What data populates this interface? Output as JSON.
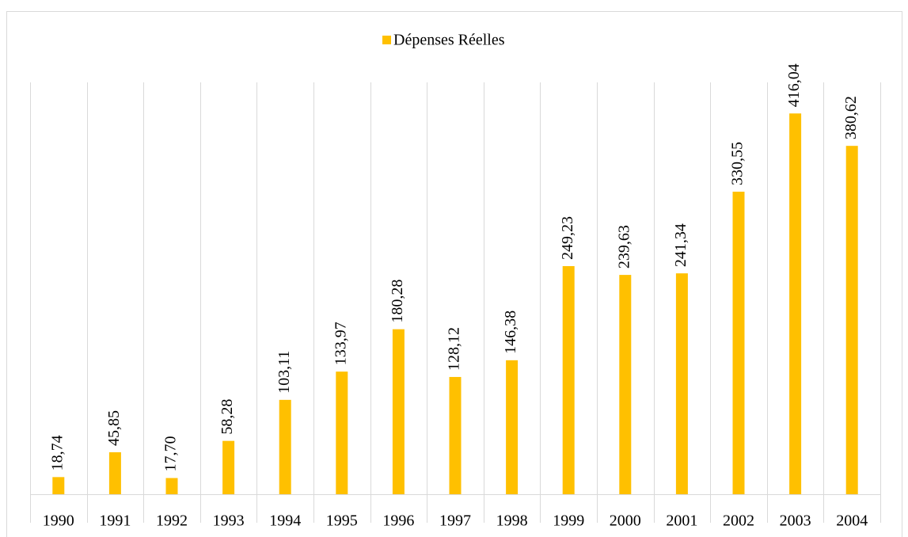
{
  "chart_data": {
    "type": "bar",
    "categories": [
      "1990",
      "1991",
      "1992",
      "1993",
      "1994",
      "1995",
      "1996",
      "1997",
      "1998",
      "1999",
      "2000",
      "2001",
      "2002",
      "2003",
      "2004"
    ],
    "series": [
      {
        "name": "Dépenses Réelles",
        "color": "#ffc000",
        "values": [
          18.74,
          45.85,
          17.7,
          58.28,
          103.11,
          133.97,
          180.28,
          128.12,
          146.38,
          249.23,
          239.63,
          241.34,
          330.55,
          416.04,
          380.62
        ],
        "value_labels": [
          "18,74",
          "45,85",
          "17,70",
          "58,28",
          "103,11",
          "133,97",
          "180,28",
          "128,12",
          "146,38",
          "249,23",
          "239,63",
          "241,34",
          "330,55",
          "416,04",
          "380,62"
        ]
      }
    ],
    "ylim": [
      0,
      450
    ],
    "legend": "top"
  }
}
